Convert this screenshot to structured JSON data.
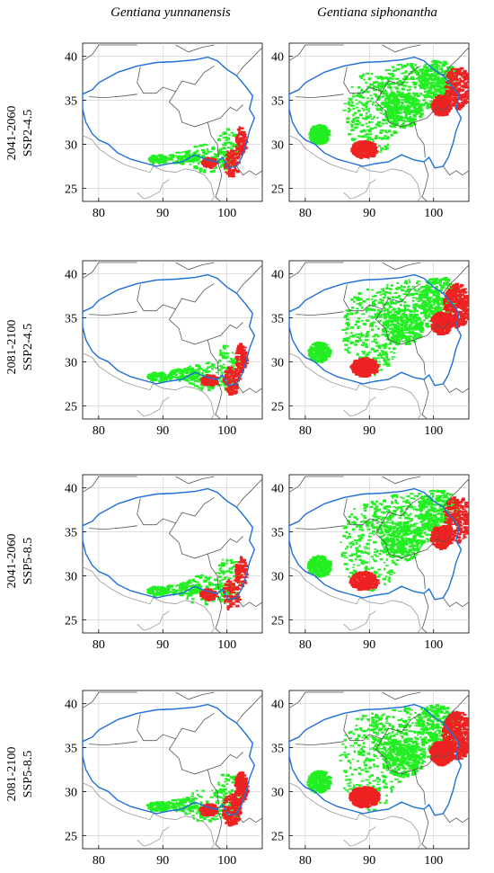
{
  "columns": [
    {
      "title": "Gentiana yunnanensis"
    },
    {
      "title": "Gentiana siphonantha"
    }
  ],
  "rows": [
    {
      "period": "2041-2060",
      "scenario": "SSP2-4.5"
    },
    {
      "period": "2081-2100",
      "scenario": "SSP2-4.5"
    },
    {
      "period": "2041-2060",
      "scenario": "SSP5-8.5"
    },
    {
      "period": "2081-2100",
      "scenario": "SSP5-8.5"
    }
  ],
  "axes": {
    "x_ticks": [
      80,
      90,
      100
    ],
    "y_ticks": [
      25,
      30,
      35,
      40
    ],
    "xlim": [
      77.5,
      105.5
    ],
    "ylim": [
      23.5,
      41.5
    ]
  },
  "colors": {
    "plateau_boundary": "#1f6fd6",
    "admin_boundary": "#555555",
    "country_boundary": "#999999",
    "suitable_stable": "#22ee22",
    "suitable_gain_or_loss": "#ee2222",
    "grid": "#cccccc"
  }
}
